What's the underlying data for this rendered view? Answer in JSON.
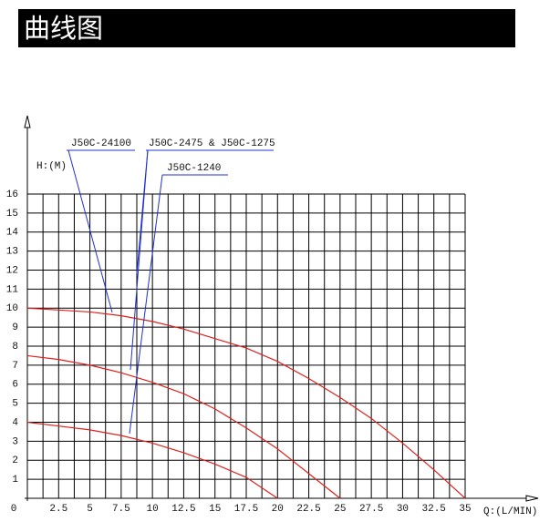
{
  "header": {
    "title": "曲线图"
  },
  "chart_data": {
    "type": "line",
    "ylabel": "H:(M)",
    "xlabel": "Q:(L/MIN)",
    "xlim": [
      0,
      35
    ],
    "ylim": [
      0,
      16
    ],
    "xticks": [
      0,
      2.5,
      5,
      7.5,
      10,
      12.5,
      15,
      17.5,
      20,
      22.5,
      25,
      27.5,
      30,
      32.5,
      35
    ],
    "yticks": [
      1,
      2,
      3,
      4,
      5,
      6,
      7,
      8,
      9,
      10,
      11,
      12,
      13,
      14,
      15,
      16
    ],
    "grid": true,
    "series": [
      {
        "name": "J50C-24100",
        "color": "#e0201c",
        "x": [
          0,
          2.5,
          5,
          7.5,
          10,
          12.5,
          15,
          17.5,
          20,
          22.5,
          25,
          27.5,
          30,
          32.5,
          35
        ],
        "values": [
          10,
          9.9,
          9.8,
          9.6,
          9.3,
          8.9,
          8.4,
          7.9,
          7.2,
          6.3,
          5.3,
          4.2,
          2.9,
          1.5,
          0
        ]
      },
      {
        "name": "J50C-2475 & J50C-1275",
        "color": "#e0201c",
        "x": [
          0,
          2.5,
          5,
          7.5,
          10,
          12.5,
          15,
          17.5,
          20,
          22.5,
          25
        ],
        "values": [
          7.5,
          7.3,
          7.0,
          6.6,
          6.1,
          5.5,
          4.7,
          3.7,
          2.6,
          1.3,
          0
        ]
      },
      {
        "name": "J50C-1240",
        "color": "#e0201c",
        "x": [
          0,
          2.5,
          5,
          7.5,
          10,
          12.5,
          15,
          17.5,
          20
        ],
        "values": [
          4,
          3.8,
          3.6,
          3.3,
          2.9,
          2.4,
          1.8,
          1.1,
          0
        ]
      }
    ]
  }
}
